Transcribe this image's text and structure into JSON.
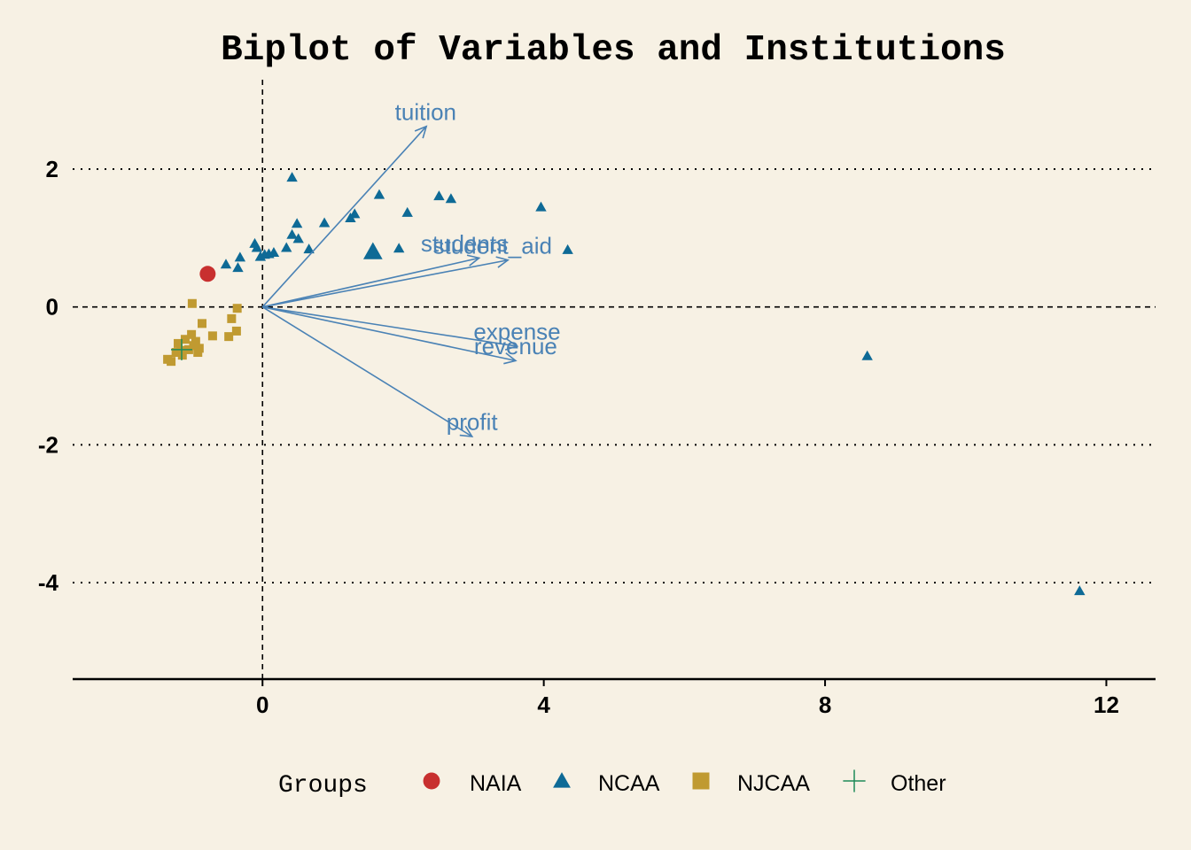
{
  "chart_data": {
    "type": "scatter",
    "title": "Biplot of Variables and Institutions",
    "xlabel": "",
    "ylabel": "",
    "xlim": [
      -2.7,
      12.7
    ],
    "ylim": [
      -5.4,
      3.4
    ],
    "x_ticks": [
      0,
      4,
      8,
      12
    ],
    "y_ticks": [
      2,
      0,
      -2,
      -4
    ],
    "grid": "horizontal dotted at y ticks",
    "reference_lines": {
      "x": 0,
      "y": 0,
      "style": "dashed"
    },
    "legend": {
      "title": "Groups",
      "placement": "bottom"
    },
    "colors": {
      "background": "#f7f1e4",
      "NAIA": "#c8302f",
      "NCAA": "#0e6a96",
      "NJCAA": "#c09a31",
      "Other": "#1e8a58",
      "arrows": "#4a82b5"
    },
    "series": [
      {
        "name": "NAIA",
        "marker": "circle",
        "points": [
          [
            -0.78,
            0.48
          ]
        ]
      },
      {
        "name": "NCAA",
        "marker": "triangle",
        "points": [
          [
            0.42,
            1.88
          ],
          [
            1.66,
            1.63
          ],
          [
            2.51,
            1.61
          ],
          [
            2.68,
            1.57
          ],
          [
            3.96,
            1.45
          ],
          [
            2.06,
            1.37
          ],
          [
            1.31,
            1.35
          ],
          [
            1.25,
            1.29
          ],
          [
            0.88,
            1.22
          ],
          [
            0.49,
            1.21
          ],
          [
            0.42,
            1.05
          ],
          [
            0.51,
            0.99
          ],
          [
            -0.11,
            0.92
          ],
          [
            -0.08,
            0.86
          ],
          [
            0.34,
            0.86
          ],
          [
            0.66,
            0.84
          ],
          [
            1.94,
            0.85
          ],
          [
            4.34,
            0.83
          ],
          [
            0.16,
            0.79
          ],
          [
            0.09,
            0.77
          ],
          [
            0.03,
            0.76
          ],
          [
            -0.32,
            0.72
          ],
          [
            -0.03,
            0.73
          ],
          [
            -0.52,
            0.62
          ],
          [
            -0.35,
            0.57
          ],
          [
            1.57,
            0.8,
            "large"
          ],
          [
            8.6,
            -0.71
          ],
          [
            11.62,
            -4.12
          ]
        ]
      },
      {
        "name": "NJCAA",
        "marker": "square",
        "points": [
          [
            -1.0,
            0.05
          ],
          [
            -0.36,
            -0.02
          ],
          [
            -0.44,
            -0.17
          ],
          [
            -0.86,
            -0.24
          ],
          [
            -0.37,
            -0.35
          ],
          [
            -0.71,
            -0.42
          ],
          [
            -0.48,
            -0.43
          ],
          [
            -1.01,
            -0.4
          ],
          [
            -1.1,
            -0.47
          ],
          [
            -0.95,
            -0.5
          ],
          [
            -1.2,
            -0.53
          ],
          [
            -0.9,
            -0.6
          ],
          [
            -1.05,
            -0.62
          ],
          [
            -1.16,
            -0.63
          ],
          [
            -1.23,
            -0.66
          ],
          [
            -1.14,
            -0.7
          ],
          [
            -1.35,
            -0.76
          ],
          [
            -1.3,
            -0.79
          ],
          [
            -0.98,
            -0.56
          ],
          [
            -0.92,
            -0.66
          ]
        ]
      },
      {
        "name": "Other",
        "marker": "plus",
        "points": [
          [
            -1.15,
            -0.62
          ]
        ]
      }
    ],
    "arrows": [
      {
        "name": "tuition",
        "x": 2.33,
        "y": 2.62,
        "label_x": 2.32,
        "label_y": 2.83
      },
      {
        "name": "students",
        "x": 3.08,
        "y": 0.71,
        "label_x": 2.87,
        "label_y": 0.92
      },
      {
        "name": "student_aid",
        "x": 3.49,
        "y": 0.68,
        "label_x": 3.27,
        "label_y": 0.89
      },
      {
        "name": "expense",
        "x": 3.62,
        "y": -0.57,
        "label_x": 3.62,
        "label_y": -0.36
      },
      {
        "name": "revenue",
        "x": 3.6,
        "y": -0.78,
        "label_x": 3.6,
        "label_y": -0.57
      },
      {
        "name": "profit",
        "x": 2.98,
        "y": -1.88,
        "label_x": 2.98,
        "label_y": -1.67
      }
    ]
  },
  "legend_items": [
    {
      "name": "NAIA",
      "marker": "circle"
    },
    {
      "name": "NCAA",
      "marker": "triangle"
    },
    {
      "name": "NJCAA",
      "marker": "square"
    },
    {
      "name": "Other",
      "marker": "plus"
    }
  ]
}
